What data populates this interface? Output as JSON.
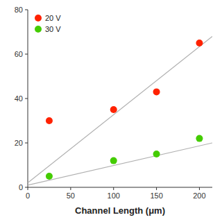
{
  "chart_data": {
    "type": "scatter",
    "xlabel": "Channel Length (μm)",
    "series": [
      {
        "name": "20 V",
        "color": "#ff2200",
        "x": [
          25,
          100,
          150,
          200
        ],
        "values": [
          30,
          35,
          43,
          65
        ],
        "fit_x": [
          0,
          215
        ],
        "fit_y": [
          2.0,
          68.0
        ],
        "fit_color": "#b0b0b0"
      },
      {
        "name": "30 V",
        "color": "#44cc00",
        "x": [
          25,
          100,
          150,
          200
        ],
        "values": [
          5,
          12,
          15,
          22
        ],
        "fit_x": [
          0,
          215
        ],
        "fit_y": [
          1.0,
          20.0
        ],
        "fit_color": "#b0b0b0"
      }
    ],
    "xlim": [
      0,
      215
    ],
    "ylim": [
      0,
      80
    ],
    "xticks": [
      0,
      50,
      100,
      150,
      200
    ],
    "yticks": [
      0,
      20,
      40,
      60,
      80
    ],
    "grid": false,
    "legend": "upper left"
  }
}
